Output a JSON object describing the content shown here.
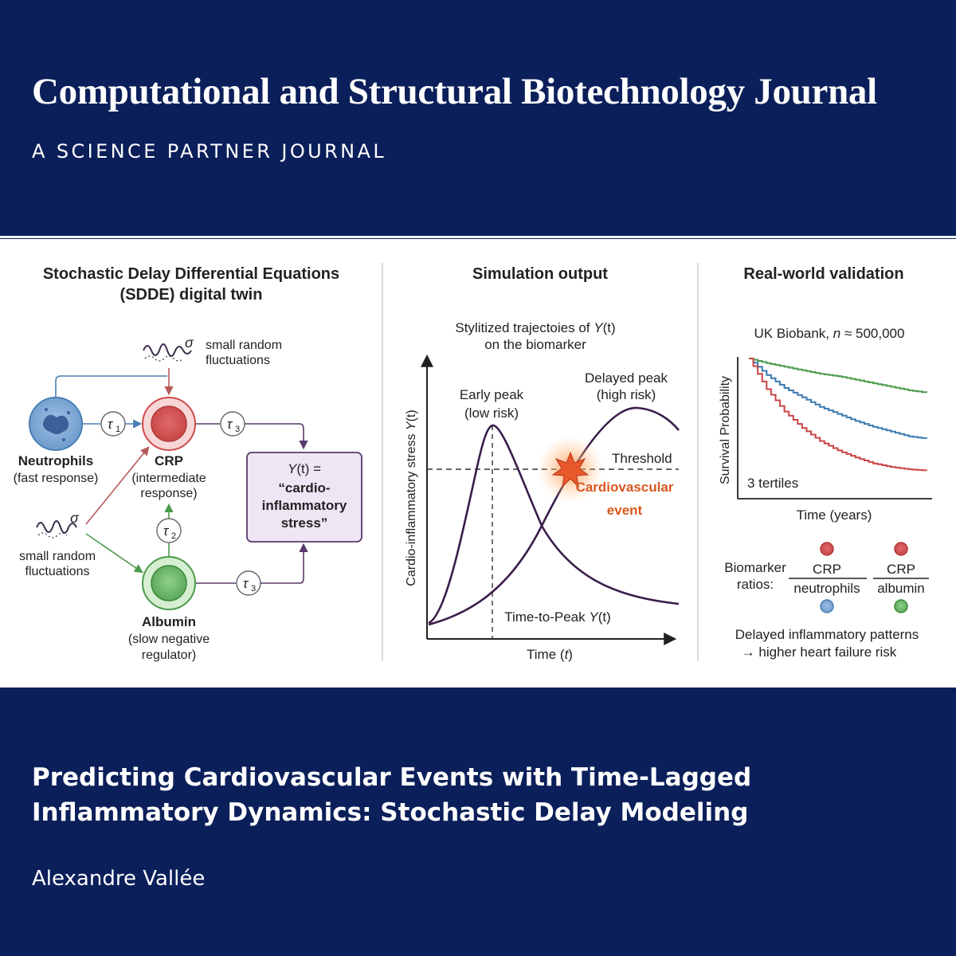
{
  "header": {
    "journal_title": "Computational and Structural Biotechnology Journal",
    "subtitle": "A SCIENCE PARTNER JOURNAL"
  },
  "panel1": {
    "title_line1": "Stochastic Delay Differential Equations",
    "title_line2": "(SDDE) digital twin",
    "noise_top_symbol": "σ",
    "noise_top_label1": "small random",
    "noise_top_label2": "fluctuations",
    "noise_left_symbol": "σ",
    "noise_left_label1": "small random",
    "noise_left_label2": "fluctuations",
    "neutrophils_name": "Neutrophils",
    "neutrophils_desc": "(fast response)",
    "crp_name": "CRP",
    "crp_desc1": "(intermediate",
    "crp_desc2": "response)",
    "albumin_name": "Albumin",
    "albumin_desc1": "(slow negative",
    "albumin_desc2": "regulator)",
    "tau": "τ",
    "tau1_sub": "1",
    "tau2_sub": "2",
    "tau3_sub": "3",
    "output_line1_y": "Y",
    "output_line1_t": "(t)",
    "output_line1_eq": " =",
    "output_line2": "“cardio-",
    "output_line3": "inflammatory",
    "output_line4": "stress”"
  },
  "panel2": {
    "title": "Simulation output",
    "subtitle_line1_prefix": "Stylitized trajectoies of ",
    "subtitle_line1_var": "Y",
    "subtitle_line1_suffix": "(t)",
    "subtitle_line2": "on the biomarker",
    "early_peak_label1": "Early peak",
    "early_peak_label2": "(low risk)",
    "delayed_peak_label1": "Delayed peak",
    "delayed_peak_label2": "(high risk)",
    "threshold_label": "Threshold",
    "event_label1": "Cardiovascular",
    "event_label2": "event",
    "ttp_prefix": "Time-to-Peak ",
    "ttp_var": "Y",
    "ttp_suffix": "(t)",
    "ylabel_prefix": "Cardio-inflammatory stress ",
    "ylabel_var": "Y",
    "ylabel_suffix": "(t)",
    "xlabel_prefix": "Time (",
    "xlabel_var": "t",
    "xlabel_suffix": ")"
  },
  "panel3": {
    "title": "Real-world validation",
    "cohort_prefix": "UK Biobank, ",
    "cohort_var": "n",
    "cohort_suffix": " ≈ 500,000",
    "ylabel": "Survival Probability",
    "xlabel": "Time (years)",
    "tertiles_label": "3 tertiles",
    "ratios_label1": "Biomarker",
    "ratios_label2": "ratios:",
    "ratio1_num": "CRP",
    "ratio1_den": "neutrophils",
    "ratio2_num": "CRP",
    "ratio2_den": "albumin",
    "conclusion1": "Delayed inflammatory patterns",
    "conclusion2": "→ higher heart failure risk"
  },
  "colors": {
    "navy": "#0b1f5a",
    "curve": "#3a1d4a",
    "crp_red": "#cf4a4a",
    "neutrophil_blue": "#4a7fb5",
    "albumin_green": "#4c9a4c",
    "event_orange": "#d9581f",
    "output_box": "#efe6f5"
  },
  "chart_data": {
    "type": "line",
    "title": "Real-world validation",
    "xlabel": "Time (years)",
    "ylabel": "Survival Probability",
    "x": [
      0,
      0.1,
      0.2,
      0.3,
      0.4,
      0.5,
      0.6,
      0.7,
      0.8,
      0.9,
      1.0
    ],
    "series": [
      {
        "name": "tertile 1",
        "values": [
          1.0,
          0.96,
          0.93,
          0.9,
          0.87,
          0.85,
          0.82,
          0.79,
          0.76,
          0.73,
          0.71
        ]
      },
      {
        "name": "tertile 2",
        "values": [
          1.0,
          0.86,
          0.75,
          0.67,
          0.59,
          0.53,
          0.47,
          0.42,
          0.38,
          0.34,
          0.32
        ]
      },
      {
        "name": "tertile 3",
        "values": [
          1.0,
          0.74,
          0.55,
          0.41,
          0.3,
          0.22,
          0.16,
          0.11,
          0.08,
          0.06,
          0.05
        ]
      }
    ],
    "series_colors": [
      "#4a9a4a",
      "#3a7ab0",
      "#c74444"
    ],
    "ylim": [
      0,
      1
    ],
    "xlim": [
      0,
      1
    ],
    "grid": false,
    "legend": "none"
  }
}
